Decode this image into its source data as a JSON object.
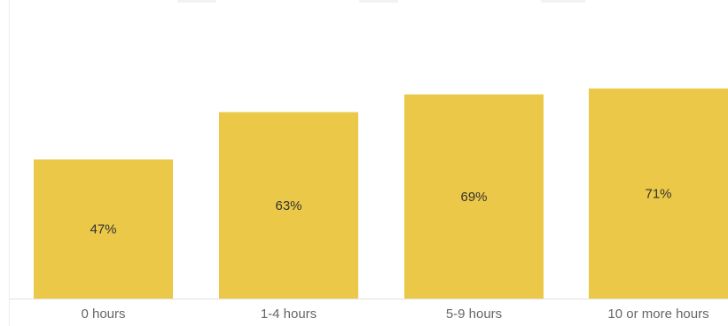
{
  "chart_data": {
    "type": "bar",
    "categories": [
      "0 hours",
      "1-4 hours",
      "5-9 hours",
      "10 or more hours"
    ],
    "values": [
      47,
      63,
      69,
      71
    ],
    "data_labels": [
      "47%",
      "63%",
      "69%",
      "71%"
    ],
    "ylim": [
      0,
      100
    ],
    "grid": false,
    "legend": "none",
    "colors": {
      "bar": "#EBC847",
      "baseline": "#E0E0E0",
      "frame": "#EDEDED"
    }
  }
}
